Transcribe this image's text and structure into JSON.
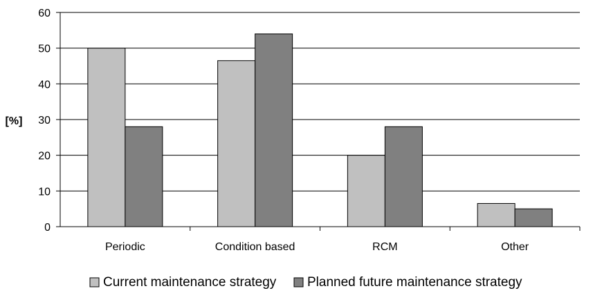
{
  "chart_data": {
    "type": "bar",
    "title": "",
    "xlabel": "",
    "ylabel": "[%]",
    "ylim": [
      0,
      60
    ],
    "yticks": [
      0,
      10,
      20,
      30,
      40,
      50,
      60
    ],
    "grid": "horizontal",
    "legend_position": "bottom",
    "categories": [
      "Periodic",
      "Condition based",
      "RCM",
      "Other"
    ],
    "series": [
      {
        "name": "Current maintenance strategy",
        "color": "#c0c0c0",
        "values": [
          50,
          46.5,
          20,
          6.5
        ]
      },
      {
        "name": "Planned future maintenance strategy",
        "color": "#808080",
        "values": [
          28,
          54,
          28,
          5
        ]
      }
    ]
  }
}
